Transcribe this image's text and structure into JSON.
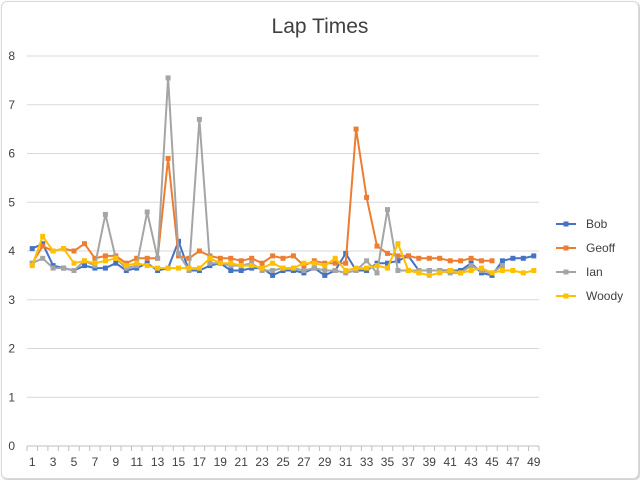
{
  "chart_data": {
    "type": "line",
    "title": "Lap Times",
    "xlabel": "",
    "ylabel": "",
    "ylim": [
      0,
      8
    ],
    "yticks": [
      0,
      1,
      2,
      3,
      4,
      5,
      6,
      7,
      8
    ],
    "grid": true,
    "legend_position": "right",
    "x": [
      1,
      2,
      3,
      4,
      5,
      6,
      7,
      8,
      9,
      10,
      11,
      12,
      13,
      14,
      15,
      16,
      17,
      18,
      19,
      20,
      21,
      22,
      23,
      24,
      25,
      26,
      27,
      28,
      29,
      30,
      31,
      32,
      33,
      34,
      35,
      36,
      37,
      38,
      39,
      40,
      41,
      42,
      43,
      44,
      45,
      46,
      47,
      48,
      49
    ],
    "x_tick_labels": [
      "1",
      "3",
      "5",
      "7",
      "9",
      "11",
      "13",
      "15",
      "17",
      "19",
      "21",
      "23",
      "25",
      "27",
      "29",
      "31",
      "33",
      "35",
      "37",
      "39",
      "41",
      "43",
      "45",
      "47",
      "49"
    ],
    "series": [
      {
        "name": "Bob",
        "color": "#4472c4",
        "values": [
          4.05,
          4.15,
          3.7,
          3.65,
          3.6,
          3.7,
          3.65,
          3.65,
          3.75,
          3.6,
          3.65,
          3.75,
          3.6,
          3.65,
          4.2,
          3.6,
          3.6,
          3.7,
          3.75,
          3.6,
          3.6,
          3.65,
          3.65,
          3.5,
          3.6,
          3.6,
          3.55,
          3.65,
          3.5,
          3.6,
          3.95,
          3.6,
          3.6,
          3.75,
          3.75,
          3.8,
          3.9,
          3.6,
          3.6,
          3.6,
          3.6,
          3.6,
          3.75,
          3.55,
          3.5,
          3.8,
          3.85,
          3.85,
          3.9
        ]
      },
      {
        "name": "Geoff",
        "color": "#ed7d31",
        "values": [
          3.75,
          4.1,
          4.0,
          4.05,
          4.0,
          4.15,
          3.85,
          3.9,
          3.9,
          3.75,
          3.85,
          3.85,
          3.85,
          5.9,
          3.9,
          3.85,
          4.0,
          3.9,
          3.85,
          3.85,
          3.8,
          3.85,
          3.75,
          3.9,
          3.85,
          3.9,
          3.7,
          3.8,
          3.75,
          3.75,
          3.75,
          6.5,
          5.1,
          4.1,
          3.95,
          3.9,
          3.9,
          3.85,
          3.85,
          3.85,
          3.8,
          3.8,
          3.85,
          3.8,
          3.8,
          null,
          null,
          null,
          null
        ]
      },
      {
        "name": "Ian",
        "color": "#a5a5a5",
        "values": [
          3.75,
          3.85,
          3.65,
          3.65,
          3.6,
          3.8,
          3.7,
          4.75,
          3.85,
          3.65,
          3.7,
          4.8,
          3.85,
          7.55,
          3.95,
          3.6,
          6.7,
          3.75,
          3.75,
          3.7,
          3.7,
          3.75,
          3.6,
          3.6,
          3.65,
          3.65,
          3.6,
          3.65,
          3.6,
          3.6,
          3.55,
          3.6,
          3.8,
          3.55,
          4.85,
          3.6,
          3.6,
          3.6,
          3.6,
          3.6,
          3.55,
          3.55,
          3.7,
          3.6,
          3.55,
          3.7,
          null,
          null,
          null
        ]
      },
      {
        "name": "Woody",
        "color": "#ffc000",
        "values": [
          3.7,
          4.3,
          4.0,
          4.05,
          3.75,
          3.8,
          3.75,
          3.8,
          3.85,
          3.7,
          3.75,
          3.7,
          3.65,
          3.65,
          3.65,
          3.65,
          3.65,
          3.85,
          3.75,
          3.75,
          3.7,
          3.7,
          3.65,
          3.75,
          3.65,
          3.65,
          3.75,
          3.75,
          3.7,
          3.85,
          3.6,
          3.65,
          3.65,
          3.7,
          3.65,
          4.15,
          3.6,
          3.55,
          3.5,
          3.55,
          3.6,
          3.55,
          3.6,
          3.65,
          3.55,
          3.6,
          3.6,
          3.55,
          3.6
        ]
      }
    ]
  }
}
